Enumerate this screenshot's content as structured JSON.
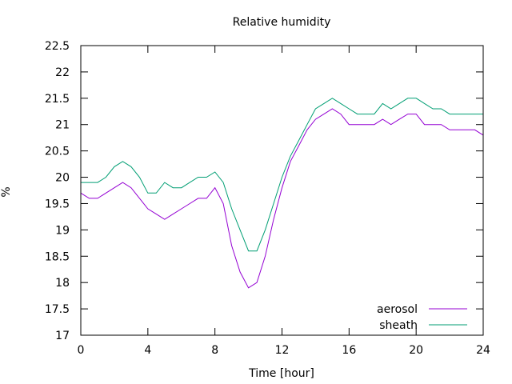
{
  "chart_data": {
    "type": "line",
    "title": "Relative humidity",
    "xlabel": "Time [hour]",
    "ylabel": "%",
    "xlim": [
      0,
      24
    ],
    "ylim": [
      17,
      22.5
    ],
    "xticks": [
      0,
      4,
      8,
      12,
      16,
      20,
      24
    ],
    "xtick_labels": [
      "0",
      "4",
      "8",
      "12",
      "16",
      "20",
      "24"
    ],
    "yticks": [
      17,
      17.5,
      18,
      18.5,
      19,
      19.5,
      20,
      20.5,
      21,
      21.5,
      22,
      22.5
    ],
    "ytick_labels": [
      "17",
      "17.5",
      "18",
      "18.5",
      "19",
      "19.5",
      "20",
      "20.5",
      "21",
      "21.5",
      "22",
      "22.5"
    ],
    "grid": false,
    "legend_position": "bottom-right",
    "series": [
      {
        "name": "aerosol",
        "color": "#9400d3",
        "x": [
          0,
          0.5,
          1,
          1.5,
          2,
          2.5,
          3,
          3.5,
          4,
          4.5,
          5,
          5.5,
          6,
          6.5,
          7,
          7.5,
          8,
          8.5,
          9,
          9.5,
          10,
          10.5,
          11,
          11.5,
          12,
          12.5,
          13,
          13.5,
          14,
          14.5,
          15,
          15.5,
          16,
          16.5,
          17,
          17.5,
          18,
          18.5,
          19,
          19.5,
          20,
          20.5,
          21,
          21.5,
          22,
          22.5,
          23,
          23.5,
          24
        ],
        "y": [
          19.7,
          19.6,
          19.6,
          19.7,
          19.8,
          19.9,
          19.8,
          19.6,
          19.4,
          19.3,
          19.2,
          19.3,
          19.4,
          19.5,
          19.6,
          19.6,
          19.8,
          19.5,
          18.7,
          18.2,
          17.9,
          18.0,
          18.5,
          19.2,
          19.8,
          20.3,
          20.6,
          20.9,
          21.1,
          21.2,
          21.3,
          21.2,
          21.0,
          21.0,
          21.0,
          21.0,
          21.1,
          21.0,
          21.1,
          21.2,
          21.2,
          21.0,
          21.0,
          21.0,
          20.9,
          20.9,
          20.9,
          20.9,
          20.8
        ]
      },
      {
        "name": "sheath",
        "color": "#009e73",
        "x": [
          0,
          0.5,
          1,
          1.5,
          2,
          2.5,
          3,
          3.5,
          4,
          4.5,
          5,
          5.5,
          6,
          6.5,
          7,
          7.5,
          8,
          8.5,
          9,
          9.5,
          10,
          10.5,
          11,
          11.5,
          12,
          12.5,
          13,
          13.5,
          14,
          14.5,
          15,
          15.5,
          16,
          16.5,
          17,
          17.5,
          18,
          18.5,
          19,
          19.5,
          20,
          20.5,
          21,
          21.5,
          22,
          22.5,
          23,
          23.5,
          24
        ],
        "y": [
          19.9,
          19.9,
          19.9,
          20.0,
          20.2,
          20.3,
          20.2,
          20.0,
          19.7,
          19.7,
          19.9,
          19.8,
          19.8,
          19.9,
          20.0,
          20.0,
          20.1,
          19.9,
          19.4,
          19.0,
          18.6,
          18.6,
          19.0,
          19.5,
          20.0,
          20.4,
          20.7,
          21.0,
          21.3,
          21.4,
          21.5,
          21.4,
          21.3,
          21.2,
          21.2,
          21.2,
          21.4,
          21.3,
          21.4,
          21.5,
          21.5,
          21.4,
          21.3,
          21.3,
          21.2,
          21.2,
          21.2,
          21.2,
          21.2
        ]
      }
    ]
  }
}
